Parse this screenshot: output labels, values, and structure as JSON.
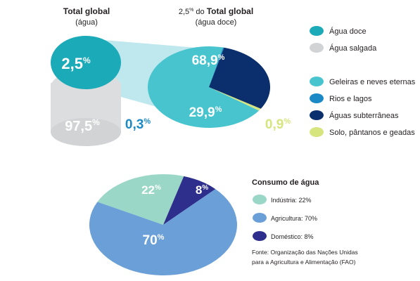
{
  "colors": {
    "agua_doce": "#1aaab8",
    "agua_salgada": "#d1d3d4",
    "cylinder_side": "#dcdddf",
    "funnel": "#bfe8ee",
    "geleiras": "#48c4cf",
    "rios": "#1b89c6",
    "subterraneas": "#0b2f6c",
    "solo": "#d6e57e",
    "industria": "#9ad7c6",
    "agricultura": "#6b9fd8",
    "domestico": "#2e2f8c",
    "text": "#231f20",
    "white": "#ffffff"
  },
  "top_left": {
    "title": "Total global",
    "subtitle": "(água)"
  },
  "top_right": {
    "title_prefix": "2,5",
    "title_prefix_sup": "%",
    "title_mid": " do ",
    "title_bold": "Total global",
    "subtitle": "(água doce)"
  },
  "legend_top": {
    "items": [
      {
        "label": "Água doce",
        "color_key": "agua_doce"
      },
      {
        "label": "Água salgada",
        "color_key": "agua_salgada"
      }
    ]
  },
  "legend_mid": {
    "items": [
      {
        "label": "Geleiras e neves eternas",
        "color_key": "geleiras"
      },
      {
        "label": "Rios e lagos",
        "color_key": "rios"
      },
      {
        "label": "Águas subterrâneas",
        "color_key": "subterraneas"
      },
      {
        "label": "Solo, pântanos e geadas",
        "color_key": "solo"
      }
    ]
  },
  "legend_bottom": {
    "title": "Consumo de água",
    "items": [
      {
        "label": "Indústria: 22%",
        "color_key": "industria"
      },
      {
        "label": "Agricultura: 70%",
        "color_key": "agricultura"
      },
      {
        "label": "Doméstico: 8%",
        "color_key": "domestico"
      }
    ],
    "source_line1": "Fonte: Organização das Nações Unidas",
    "source_line2": "para a Agricultura e Alimentação (FAO)"
  },
  "chart_data": [
    {
      "type": "pie",
      "title": "Total global",
      "subtitle": "(água)",
      "slices": [
        {
          "label": "Água doce",
          "value": 2.5,
          "display": "2,5"
        },
        {
          "label": "Água salgada",
          "value": 97.5,
          "display": "97,5"
        }
      ]
    },
    {
      "type": "pie",
      "title": "2,5% do Total global",
      "subtitle": "(água doce)",
      "slices": [
        {
          "label": "Geleiras e neves eternas",
          "value": 68.9,
          "display": "68,9"
        },
        {
          "label": "Rios e lagos",
          "value": 0.3,
          "display": "0,3"
        },
        {
          "label": "Águas subterrâneas",
          "value": 29.9,
          "display": "29,9"
        },
        {
          "label": "Solo, pântanos e geadas",
          "value": 0.9,
          "display": "0,9"
        }
      ]
    },
    {
      "type": "pie",
      "title": "Consumo de água",
      "slices": [
        {
          "label": "Indústria",
          "value": 22,
          "display": "22"
        },
        {
          "label": "Agricultura",
          "value": 70,
          "display": "70"
        },
        {
          "label": "Doméstico",
          "value": 8,
          "display": "8"
        }
      ]
    }
  ]
}
